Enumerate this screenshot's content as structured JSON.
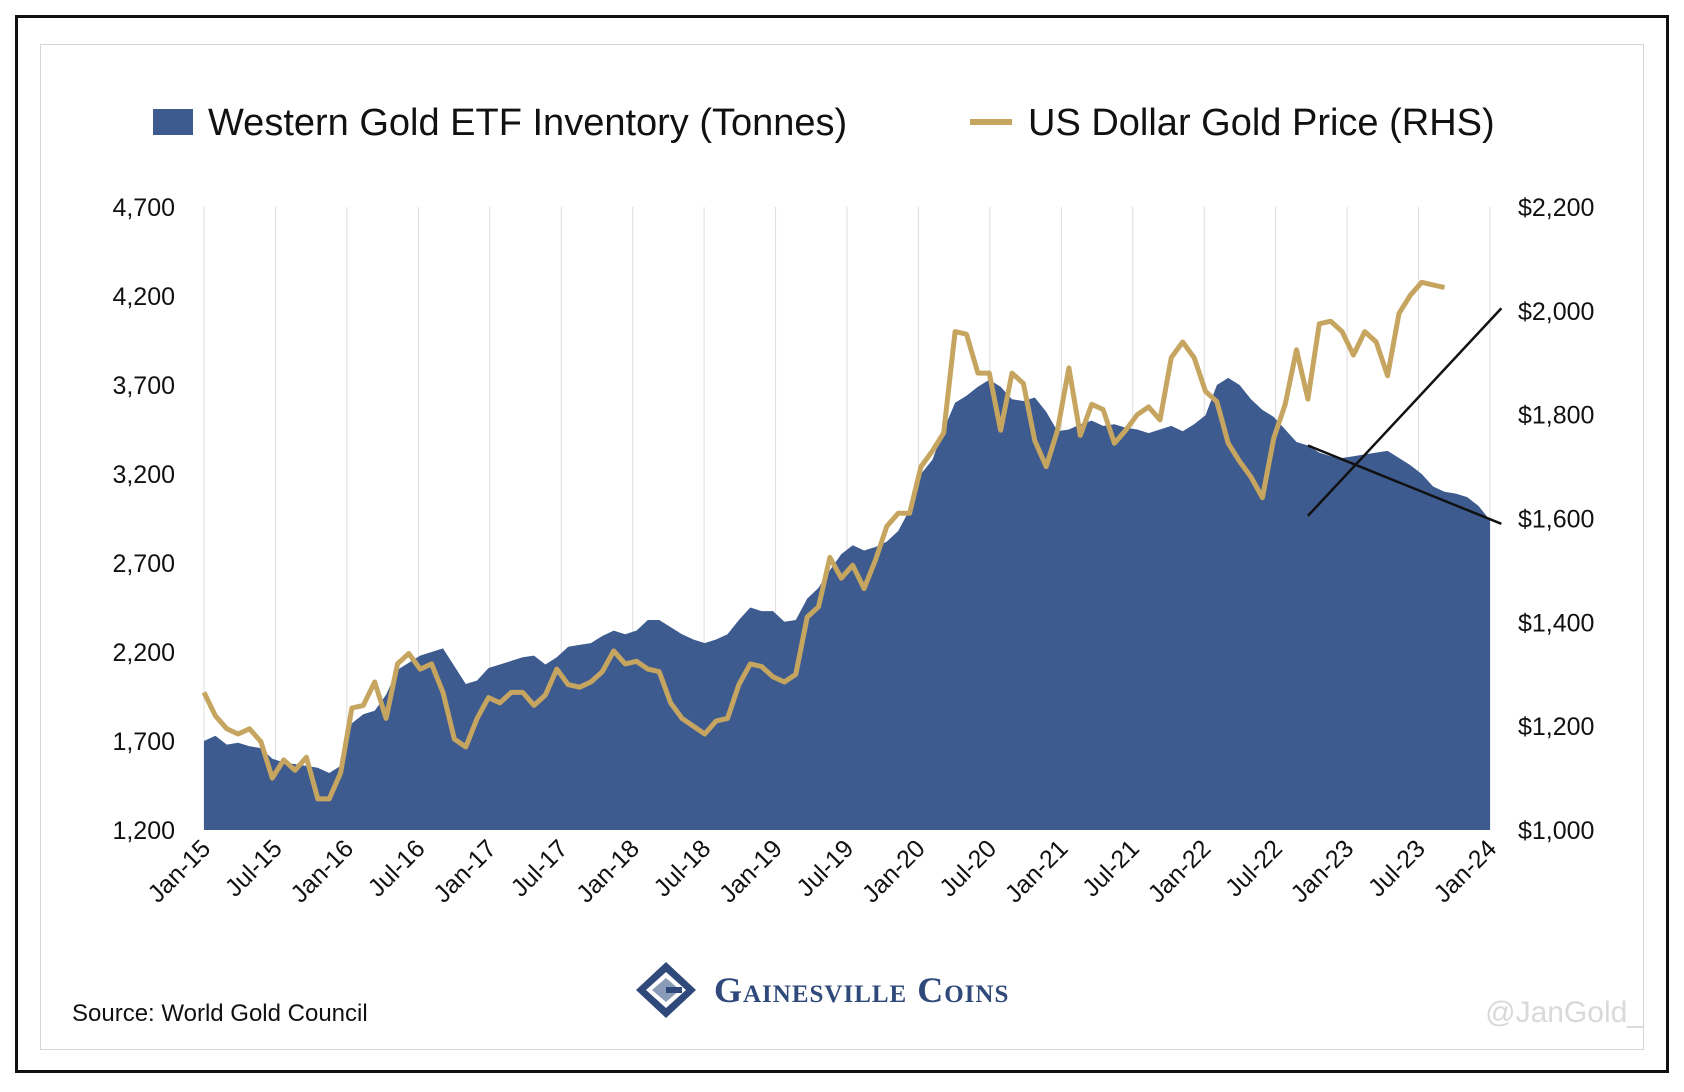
{
  "chart_data": {
    "type": "area",
    "legend": [
      {
        "label": "Western Gold ETF Inventory (Tonnes)",
        "kind": "area",
        "color": "#3d5b8f"
      },
      {
        "label": "US Dollar Gold Price (RHS)",
        "kind": "line",
        "color": "#c6a560"
      }
    ],
    "x_tick_labels": [
      "Jan-15",
      "Jul-15",
      "Jan-16",
      "Jul-16",
      "Jan-17",
      "Jul-17",
      "Jan-18",
      "Jul-18",
      "Jan-19",
      "Jul-19",
      "Jan-20",
      "Jul-20",
      "Jan-21",
      "Jul-21",
      "Jan-22",
      "Jul-22",
      "Jan-23",
      "Jul-23",
      "Jan-24"
    ],
    "y_left": {
      "min": 1200,
      "max": 4700,
      "ticks": [
        "1,200",
        "1,700",
        "2,200",
        "2,700",
        "3,200",
        "3,700",
        "4,200",
        "4,700"
      ]
    },
    "y_right": {
      "min": 1000,
      "max": 2200,
      "ticks": [
        "$1,000",
        "$1,200",
        "$1,400",
        "$1,600",
        "$1,800",
        "$2,000",
        "$2,200"
      ]
    },
    "grid": "vertical",
    "series": [
      {
        "name": "Western Gold ETF Inventory (Tonnes)",
        "axis": "left",
        "values": [
          1700,
          1730,
          1680,
          1690,
          1670,
          1660,
          1600,
          1580,
          1570,
          1560,
          1550,
          1520,
          1560,
          1800,
          1850,
          1870,
          1960,
          2100,
          2140,
          2180,
          2200,
          2220,
          2120,
          2020,
          2040,
          2110,
          2130,
          2150,
          2170,
          2180,
          2130,
          2170,
          2230,
          2240,
          2250,
          2290,
          2320,
          2300,
          2320,
          2380,
          2380,
          2340,
          2300,
          2270,
          2250,
          2270,
          2300,
          2380,
          2450,
          2430,
          2430,
          2370,
          2380,
          2500,
          2560,
          2660,
          2750,
          2800,
          2770,
          2790,
          2820,
          2880,
          3000,
          3200,
          3280,
          3450,
          3600,
          3640,
          3690,
          3730,
          3690,
          3620,
          3610,
          3630,
          3550,
          3440,
          3450,
          3480,
          3500,
          3470,
          3480,
          3460,
          3450,
          3430,
          3450,
          3470,
          3440,
          3480,
          3530,
          3700,
          3740,
          3700,
          3620,
          3560,
          3520,
          3450,
          3380,
          3360,
          3320,
          3300,
          3290,
          3300,
          3310,
          3320,
          3330,
          3290,
          3250,
          3200,
          3130,
          3100,
          3090,
          3070,
          3020,
          2940
        ]
      },
      {
        "name": "US Dollar Gold Price (RHS)",
        "axis": "right",
        "values": [
          1265,
          1220,
          1195,
          1185,
          1195,
          1170,
          1100,
          1135,
          1115,
          1140,
          1060,
          1060,
          1110,
          1235,
          1240,
          1285,
          1215,
          1320,
          1340,
          1310,
          1320,
          1265,
          1175,
          1160,
          1215,
          1255,
          1245,
          1265,
          1265,
          1240,
          1260,
          1310,
          1280,
          1275,
          1285,
          1305,
          1345,
          1320,
          1325,
          1310,
          1305,
          1245,
          1215,
          1200,
          1185,
          1210,
          1215,
          1280,
          1320,
          1315,
          1295,
          1285,
          1300,
          1410,
          1430,
          1525,
          1485,
          1510,
          1465,
          1520,
          1585,
          1610,
          1610,
          1700,
          1730,
          1765,
          1960,
          1955,
          1880,
          1880,
          1770,
          1880,
          1860,
          1750,
          1700,
          1770,
          1890,
          1760,
          1820,
          1810,
          1745,
          1770,
          1800,
          1815,
          1790,
          1910,
          1940,
          1910,
          1845,
          1825,
          1745,
          1710,
          1680,
          1640,
          1755,
          1820,
          1925,
          1830,
          1975,
          1980,
          1960,
          1915,
          1960,
          1940,
          1875,
          1995,
          2030,
          2055,
          2050,
          2045
        ]
      }
    ],
    "annotations": [
      {
        "type": "trendline",
        "axis": "left",
        "from": {
          "x_index": 97,
          "y": 3360
        },
        "to": {
          "x_index": 114,
          "y": 2920
        }
      },
      {
        "type": "trendline",
        "axis": "right",
        "from": {
          "x_index": 97,
          "y": 1605
        },
        "to": {
          "x_index": 114,
          "y": 2005
        }
      }
    ]
  },
  "logo": {
    "name": "Gainesville Coins",
    "icon": "gainesville-g-logo-icon"
  },
  "source_text": "Source: World Gold Council",
  "watermark": "@JanGold_"
}
